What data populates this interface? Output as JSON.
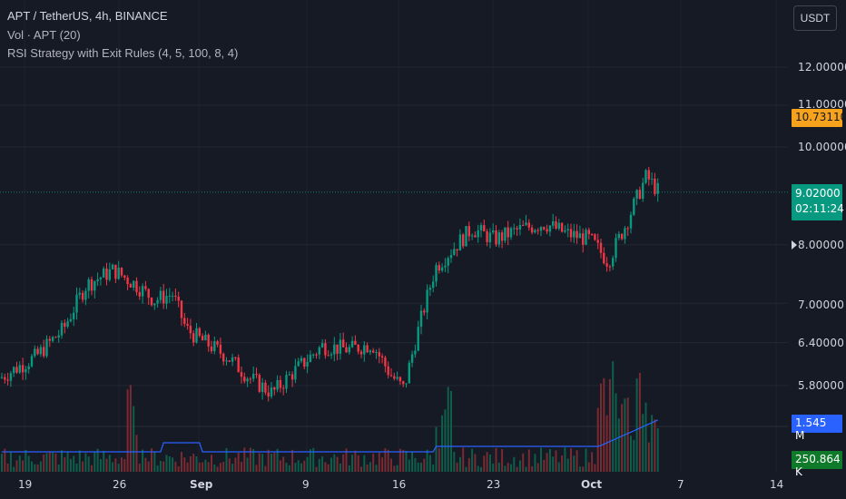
{
  "legend": {
    "title": "APT / TetherUS, 4h, BINANCE",
    "volume": "Vol · APT (20)",
    "strategy": "RSI Strategy with Exit Rules (4, 5, 100, 8, 4)"
  },
  "currency": "USDT",
  "price_axis": [
    "12.00000",
    "11.00000",
    "10.00000",
    "8.00000",
    "7.00000",
    "6.40000",
    "5.80000"
  ],
  "badges": {
    "stop_price": "10.73110",
    "last_price": "9.02000",
    "countdown": "02:11:24",
    "volume_ma": "1.545 M",
    "volume": "250.864 K"
  },
  "time_axis": [
    "19",
    "26",
    "Sep",
    "9",
    "16",
    "23",
    "Oct",
    "7",
    "14"
  ],
  "colors": {
    "background": "#161a25",
    "up": "#089981",
    "down": "#f23645",
    "volume_ma_line": "#2962ff",
    "stop_badge": "#f7a21c"
  },
  "chart_data": {
    "type": "candlestick",
    "symbol": "APT / TetherUS",
    "interval": "4h",
    "exchange": "BINANCE",
    "price_scale": "log",
    "close_path": [
      [
        "19",
        5.9
      ],
      [
        "21",
        6.2
      ],
      [
        "23",
        6.6
      ],
      [
        "24",
        7.3
      ],
      [
        "25",
        7.55
      ],
      [
        "26",
        7.3
      ],
      [
        "27",
        7.05
      ],
      [
        "28",
        7.15
      ],
      [
        "30",
        6.6
      ],
      [
        "Sep",
        6.45
      ],
      [
        "4",
        6.2
      ],
      [
        "6",
        5.9
      ],
      [
        "7",
        5.7
      ],
      [
        "8",
        6.0
      ],
      [
        "10",
        6.35
      ],
      [
        "12",
        6.3
      ],
      [
        "14",
        6.38
      ],
      [
        "15",
        5.95
      ],
      [
        "16",
        5.75
      ],
      [
        "18",
        7.6
      ],
      [
        "20",
        8.3
      ],
      [
        "22",
        8.1
      ],
      [
        "24",
        8.3
      ],
      [
        "26",
        8.4
      ],
      [
        "28",
        8.2
      ],
      [
        "30",
        8.1
      ],
      [
        "Oct",
        7.7
      ],
      [
        "2",
        8.4
      ],
      [
        "3",
        9.35
      ],
      [
        "4",
        9.02
      ]
    ],
    "last_price": 9.02,
    "stop_level": 10.7311,
    "volume_ma_last": 1545000,
    "volume_last": 250864
  }
}
